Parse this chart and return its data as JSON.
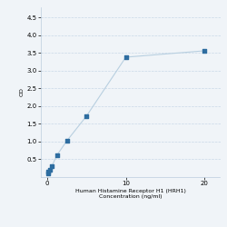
{
  "x": [
    0.078,
    0.156,
    0.313,
    0.625,
    1.25,
    2.5,
    5,
    10,
    20
  ],
  "y": [
    0.108,
    0.154,
    0.195,
    0.32,
    0.62,
    1.02,
    1.72,
    3.38,
    3.56
  ],
  "line_color": "#b8cfe0",
  "marker_color": "#2e6da0",
  "marker_size": 10,
  "xlabel_line1": "Human Histamine Receptor H1 (HRH1)",
  "xlabel_line2": "Concentration (ng/ml)",
  "ylabel": "OD",
  "ylim": [
    0,
    4.8
  ],
  "xlim": [
    -0.8,
    22
  ],
  "xticks": [
    0,
    10,
    20
  ],
  "yticks": [
    0.5,
    1.0,
    1.5,
    2.0,
    2.5,
    3.0,
    3.5,
    4.0,
    4.5
  ],
  "grid_color": "#c8d8e8",
  "background_color": "#f0f4f8",
  "label_fontsize": 4.5,
  "tick_fontsize": 5
}
